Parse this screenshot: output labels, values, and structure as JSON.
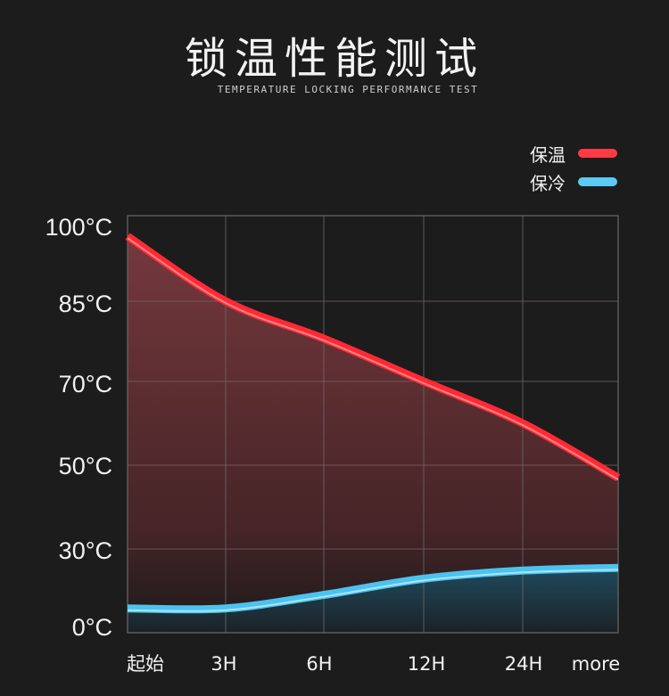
{
  "header": {
    "title": "锁温性能测试",
    "subtitle": "TEMPERATURE LOCKING PERFORMANCE TEST"
  },
  "chart_data": {
    "type": "area",
    "title": "锁温性能测试",
    "subtitle": "TEMPERATURE LOCKING PERFORMANCE TEST",
    "categories": [
      "起始",
      "3H",
      "6H",
      "12H",
      "24H",
      "more"
    ],
    "y_ticks": [
      100,
      85,
      70,
      50,
      30,
      0
    ],
    "y_tick_labels": [
      "100°C",
      "85°C",
      "70°C",
      "50°C",
      "30°C",
      "0°C"
    ],
    "y_unit": "°C",
    "ylim": [
      0,
      100
    ],
    "grid": true,
    "legend_position": "top-right",
    "series": [
      {
        "name": "保温",
        "color": "#ff2a35",
        "values": [
          97,
          85,
          78,
          70,
          60,
          47
        ]
      },
      {
        "name": "保冷",
        "color": "#4cc3ef",
        "values": [
          8,
          8,
          13,
          19,
          22,
          23
        ]
      }
    ]
  }
}
